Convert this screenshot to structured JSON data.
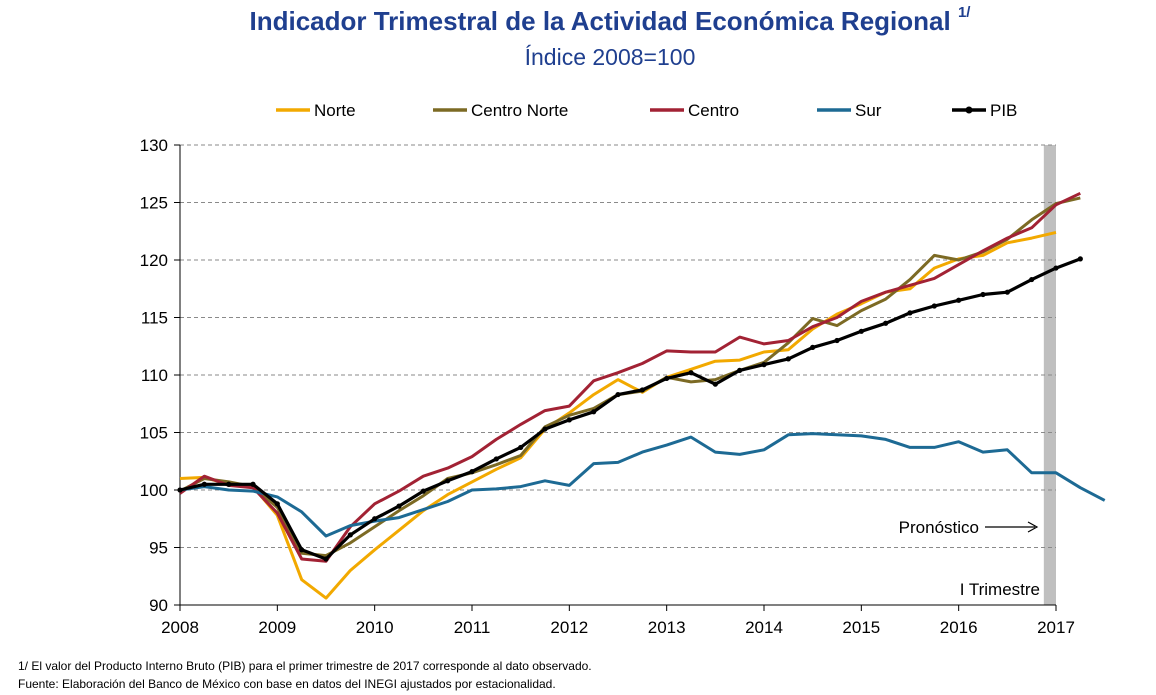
{
  "chart_data": {
    "type": "line",
    "title": "Indicador Trimestral de la Actividad Económica Regional",
    "title_superscript": "1/",
    "subtitle": "Índice 2008=100",
    "x_tick_labels": [
      "2008",
      "2009",
      "2010",
      "2011",
      "2012",
      "2013",
      "2014",
      "2015",
      "2016",
      "2017"
    ],
    "xlim": [
      0,
      36
    ],
    "ylim": [
      90,
      130
    ],
    "y_ticks": [
      90,
      95,
      100,
      105,
      110,
      115,
      120,
      125,
      130
    ],
    "grid": "horizontal-dashed",
    "legend_position": "top",
    "shaded_period": {
      "from": 35.5,
      "to": 36,
      "color": "#bfbfbf"
    },
    "annotations": {
      "forecast": "Pronóstico",
      "quarter": "I Trimestre"
    },
    "series": [
      {
        "name": "Norte",
        "color": "#f2a900",
        "marker": false,
        "values": [
          101.0,
          101.1,
          100.5,
          100.3,
          97.8,
          92.2,
          90.6,
          93.0,
          94.8,
          96.5,
          98.2,
          99.6,
          100.7,
          101.8,
          102.8,
          105.3,
          106.7,
          108.3,
          109.6,
          108.5,
          109.8,
          110.5,
          111.2,
          111.3,
          112.0,
          112.2,
          114.0,
          115.3,
          116.2,
          117.2,
          117.5,
          119.3,
          120.1,
          120.4,
          121.5,
          121.9,
          122.4
        ]
      },
      {
        "name": "Centro Norte",
        "color": "#7c6a24",
        "marker": false,
        "values": [
          99.9,
          101.0,
          100.7,
          100.3,
          98.5,
          94.5,
          94.3,
          95.4,
          96.8,
          98.2,
          99.5,
          101.0,
          101.5,
          102.2,
          103.0,
          105.5,
          106.5,
          107.1,
          108.3,
          108.6,
          109.8,
          109.4,
          109.6,
          110.4,
          111.1,
          112.8,
          114.9,
          114.3,
          115.6,
          116.6,
          118.3,
          120.4,
          120.0,
          120.7,
          121.8,
          123.5,
          124.9,
          125.4
        ]
      },
      {
        "name": "Centro",
        "color": "#a22234",
        "marker": false,
        "values": [
          99.7,
          101.2,
          100.4,
          100.2,
          98.0,
          94.0,
          93.8,
          96.8,
          98.8,
          99.9,
          101.2,
          101.9,
          102.9,
          104.4,
          105.7,
          106.9,
          107.3,
          109.5,
          110.2,
          111.0,
          112.1,
          112.0,
          112.0,
          113.3,
          112.7,
          113.0,
          114.2,
          115.0,
          116.4,
          117.2,
          117.8,
          118.4,
          119.6,
          120.8,
          121.9,
          122.8,
          124.8,
          125.8
        ]
      },
      {
        "name": "Sur",
        "color": "#1d6a94",
        "marker": false,
        "values": [
          100.0,
          100.3,
          100.0,
          99.9,
          99.4,
          98.1,
          96.0,
          96.9,
          97.3,
          97.6,
          98.3,
          99.0,
          100.0,
          100.1,
          100.3,
          100.8,
          100.4,
          102.3,
          102.4,
          103.3,
          103.9,
          104.6,
          103.3,
          103.1,
          103.5,
          104.8,
          104.9,
          104.8,
          104.7,
          104.4,
          103.7,
          103.7,
          104.2,
          103.3,
          103.5,
          101.5,
          101.5,
          100.2,
          99.1
        ]
      },
      {
        "name": "PIB",
        "color": "#000000",
        "marker": true,
        "values": [
          100.0,
          100.5,
          100.5,
          100.5,
          98.8,
          94.8,
          94.0,
          96.1,
          97.5,
          98.6,
          99.9,
          100.8,
          101.6,
          102.7,
          103.7,
          105.3,
          106.1,
          106.8,
          108.3,
          108.7,
          109.7,
          110.2,
          109.2,
          110.4,
          110.9,
          111.4,
          112.4,
          113.0,
          113.8,
          114.5,
          115.4,
          116.0,
          116.5,
          117.0,
          117.2,
          118.3,
          119.3,
          120.1
        ]
      }
    ]
  },
  "footnotes": {
    "note1": "1/ El valor del Producto Interno Bruto (PIB) para el primer trimestre de 2017 corresponde al dato observado.",
    "source": "Fuente: Elaboración del Banco de México con base en datos del INEGI ajustados por estacionalidad."
  }
}
